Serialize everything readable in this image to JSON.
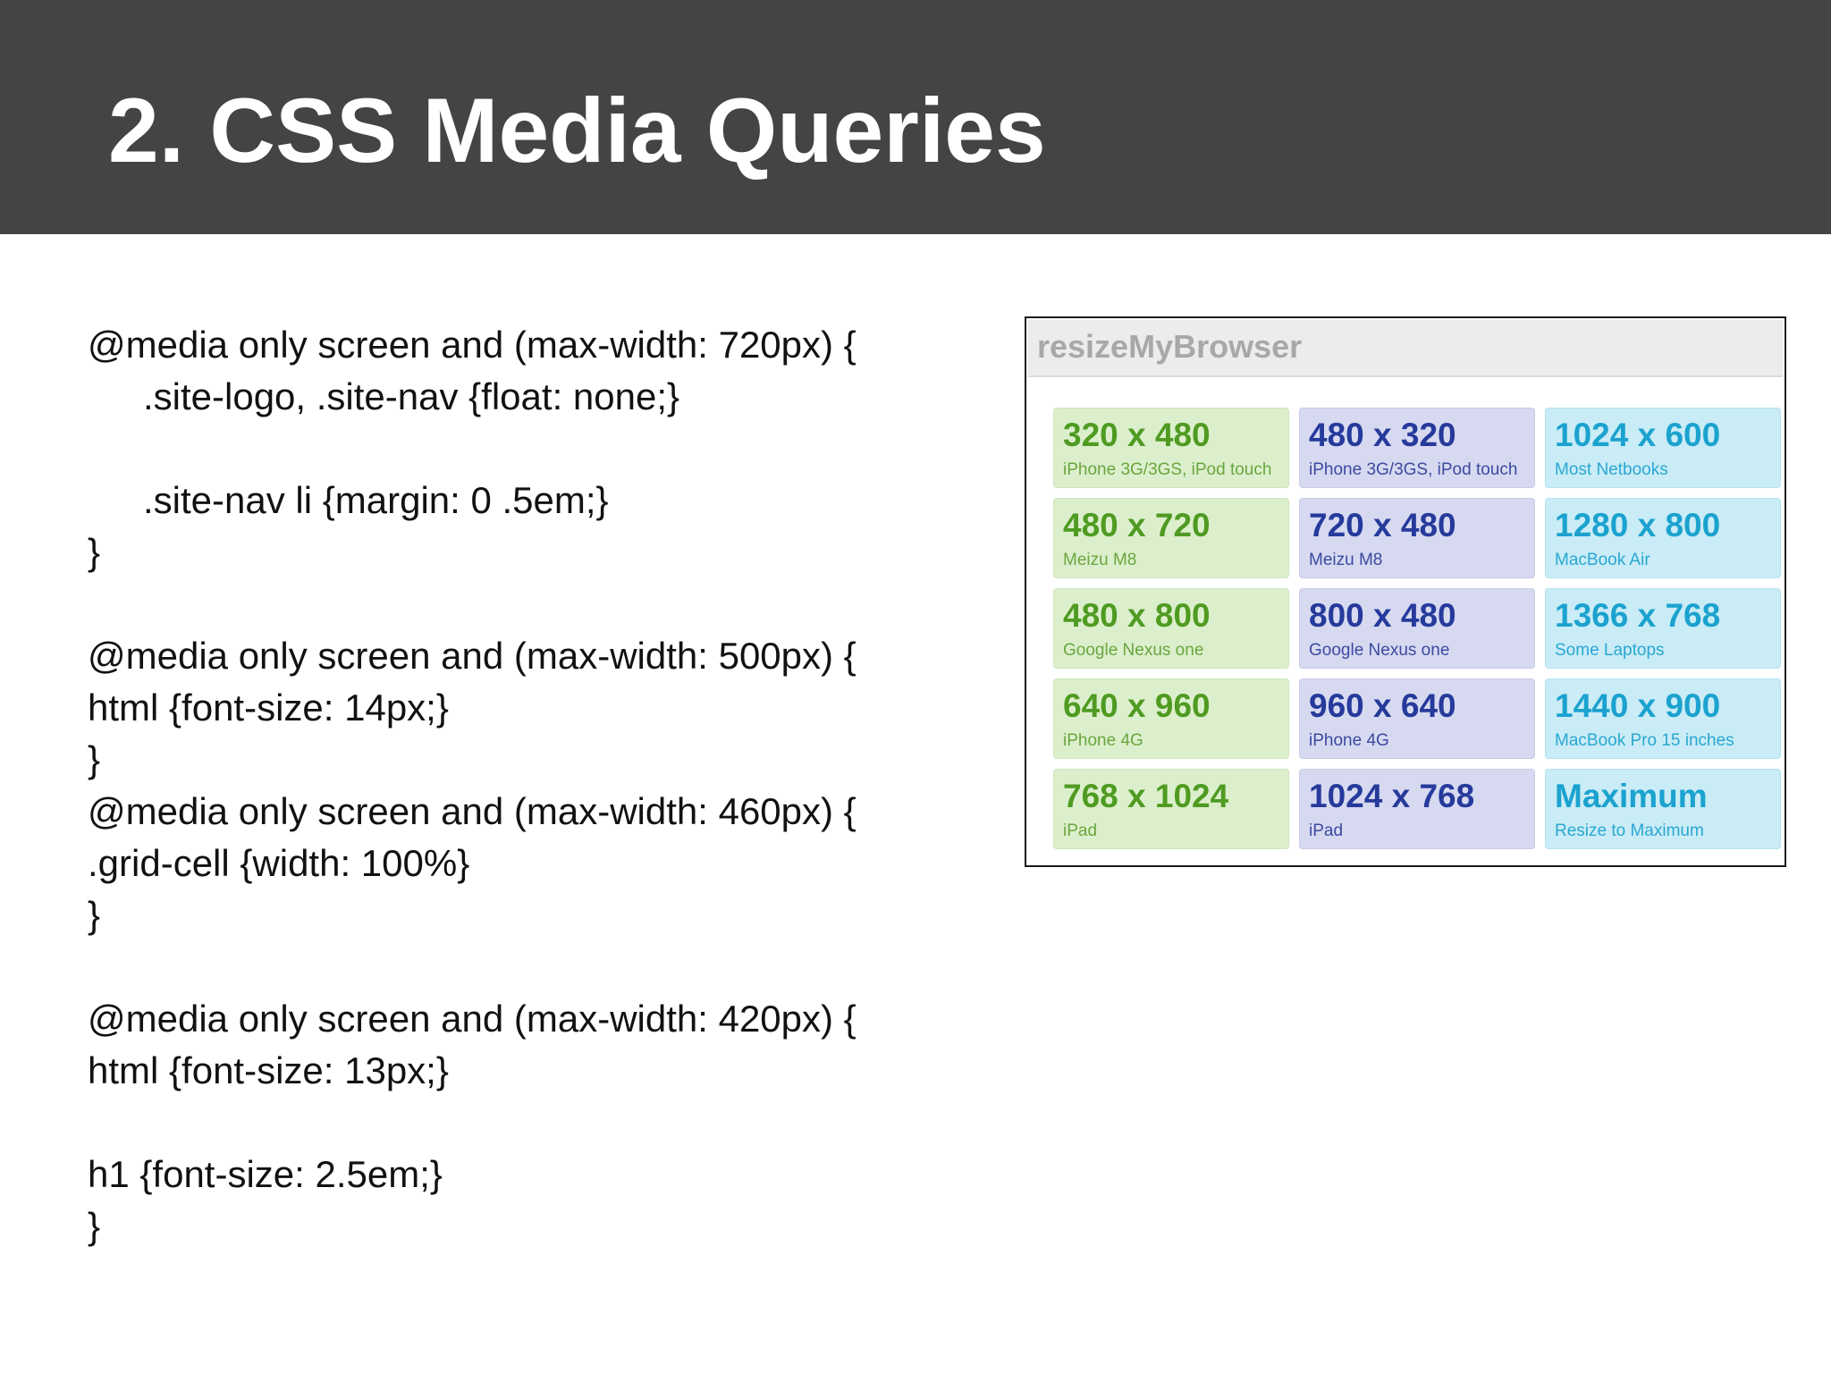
{
  "slide": {
    "title": "2. CSS Media Queries"
  },
  "code_lines": [
    {
      "text": "@media only screen and (max-width: 720px) {",
      "indent": false
    },
    {
      "text": ".site-logo, .site-nav {float: none;}",
      "indent": true
    },
    {
      "text": ".site-nav li {margin: 0 .5em;}",
      "indent": true
    },
    {
      "text": "}",
      "indent": false
    },
    {
      "text": "@media only screen and (max-width: 500px) {",
      "indent": false
    },
    {
      "text": "html {font-size: 14px;}",
      "indent": false
    },
    {
      "text": "}",
      "indent": false
    },
    {
      "text": "@media only screen and (max-width: 460px) {",
      "indent": false
    },
    {
      "text": ".grid-cell {width: 100%}",
      "indent": false
    },
    {
      "text": "}",
      "indent": false
    },
    {
      "text": "@media only screen and (max-width: 420px) {",
      "indent": false
    },
    {
      "text": "html {font-size: 13px;}",
      "indent": false
    },
    {
      "text": "h1 {font-size: 2.5em;}",
      "indent": false
    },
    {
      "text": "}",
      "indent": false
    }
  ],
  "widget": {
    "title": "resizeMyBrowser",
    "colors": {
      "green": "#4f9b22",
      "blue": "#263a9c",
      "cyan": "#1ba2cf"
    },
    "cells": [
      {
        "res": "320 x 480",
        "device": "iPhone 3G/3GS, iPod touch",
        "color": "green"
      },
      {
        "res": "480 x 320",
        "device": "iPhone 3G/3GS, iPod touch",
        "color": "blue"
      },
      {
        "res": "1024 x 600",
        "device": "Most Netbooks",
        "color": "cyan"
      },
      {
        "res": "480 x 720",
        "device": "Meizu M8",
        "color": "green"
      },
      {
        "res": "720 x 480",
        "device": "Meizu M8",
        "color": "blue"
      },
      {
        "res": "1280 x 800",
        "device": "MacBook Air",
        "color": "cyan"
      },
      {
        "res": "480 x 800",
        "device": "Google Nexus one",
        "color": "green"
      },
      {
        "res": "800 x 480",
        "device": "Google Nexus one",
        "color": "blue"
      },
      {
        "res": "1366 x 768",
        "device": "Some Laptops",
        "color": "cyan"
      },
      {
        "res": "640 x 960",
        "device": "iPhone 4G",
        "color": "green"
      },
      {
        "res": "960 x 640",
        "device": "iPhone 4G",
        "color": "blue"
      },
      {
        "res": "1440 x 900",
        "device": "MacBook Pro 15 inches",
        "color": "cyan"
      },
      {
        "res": "768 x 1024",
        "device": "iPad",
        "color": "green"
      },
      {
        "res": "1024 x 768",
        "device": "iPad",
        "color": "blue"
      },
      {
        "res": "Maximum",
        "device": "Resize to Maximum",
        "color": "cyan"
      }
    ]
  }
}
